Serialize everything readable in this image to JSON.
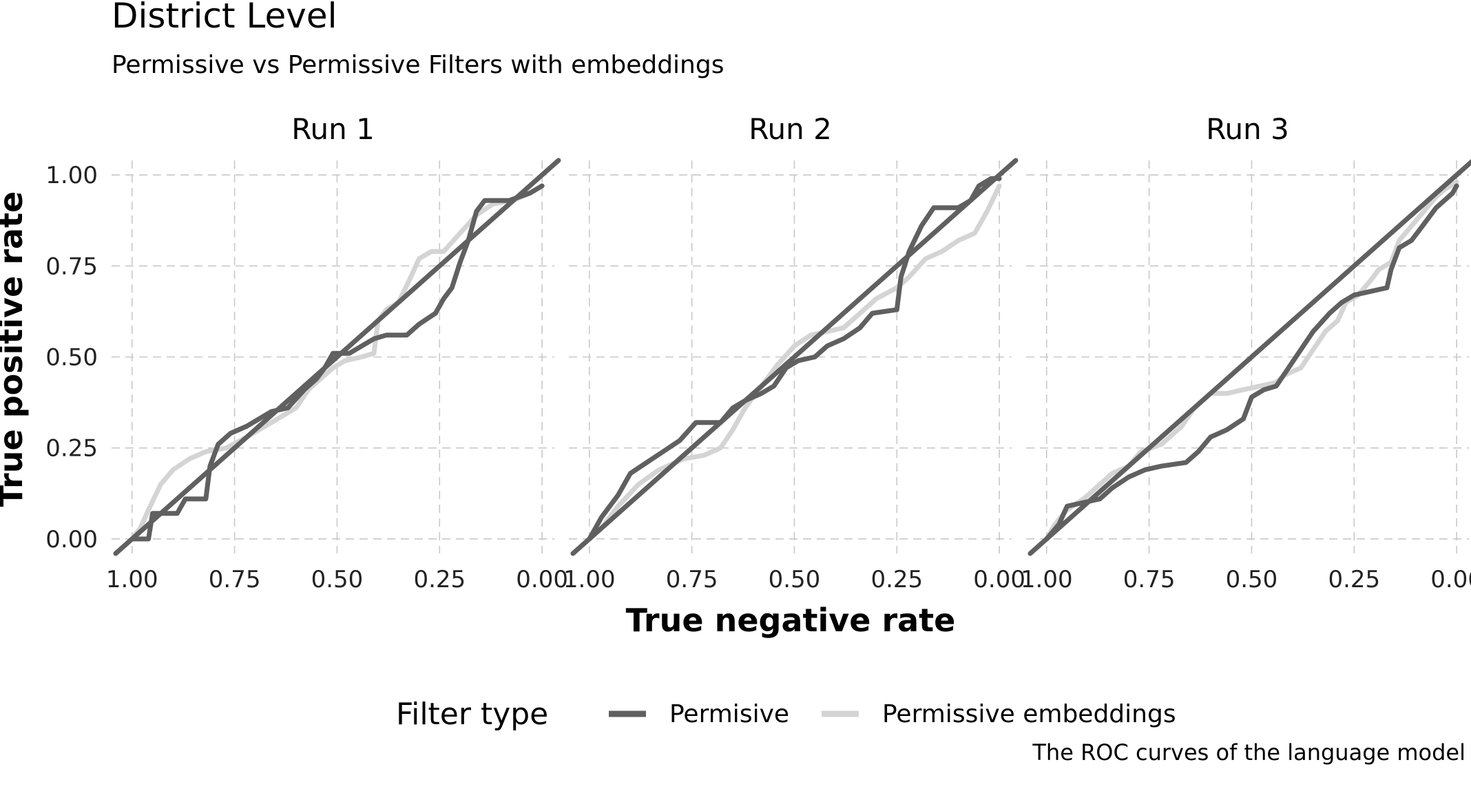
{
  "chart_data": {
    "type": "line",
    "title": "District Level",
    "subtitle": "Permissive vs Permissive Filters with embeddings",
    "caption": "The ROC curves of the language model",
    "xlabel": "True negative rate",
    "ylabel": "True positive rate",
    "x_reversed": true,
    "xlim": [
      1.05,
      -0.03
    ],
    "ylim": [
      -0.04,
      1.04
    ],
    "x_ticks": [
      1.0,
      0.75,
      0.5,
      0.25,
      0.0
    ],
    "x_tick_labels": [
      "1.00",
      "0.75",
      "0.50",
      "0.25",
      "0.00"
    ],
    "y_ticks": [
      0.0,
      0.25,
      0.5,
      0.75,
      1.0
    ],
    "y_tick_labels": [
      "0.00",
      "0.25",
      "0.50",
      "0.75",
      "1.00"
    ],
    "grid": true,
    "legend": {
      "title": "Filter type",
      "position": "bottom",
      "items": [
        {
          "label": "Permisive",
          "color": "#606060"
        },
        {
          "label": "Permissive embeddings",
          "color": "#d4d4d4"
        }
      ]
    },
    "reference_line": {
      "from": [
        1.04,
        -0.04
      ],
      "to": [
        -0.04,
        1.04
      ],
      "color": "#606060"
    },
    "facets": [
      {
        "label": "Run 1",
        "series": [
          {
            "name": "Permissive embeddings",
            "color": "#d4d4d4",
            "points": [
              [
                1.0,
                0.0
              ],
              [
                0.98,
                0.03
              ],
              [
                0.96,
                0.08
              ],
              [
                0.93,
                0.15
              ],
              [
                0.9,
                0.19
              ],
              [
                0.86,
                0.22
              ],
              [
                0.82,
                0.24
              ],
              [
                0.77,
                0.25
              ],
              [
                0.72,
                0.28
              ],
              [
                0.66,
                0.32
              ],
              [
                0.6,
                0.36
              ],
              [
                0.57,
                0.41
              ],
              [
                0.54,
                0.44
              ],
              [
                0.51,
                0.47
              ],
              [
                0.48,
                0.49
              ],
              [
                0.44,
                0.5
              ],
              [
                0.41,
                0.51
              ],
              [
                0.4,
                0.6
              ],
              [
                0.38,
                0.63
              ],
              [
                0.35,
                0.65
              ],
              [
                0.32,
                0.72
              ],
              [
                0.3,
                0.77
              ],
              [
                0.27,
                0.79
              ],
              [
                0.24,
                0.79
              ],
              [
                0.2,
                0.84
              ],
              [
                0.16,
                0.89
              ],
              [
                0.12,
                0.92
              ],
              [
                0.07,
                0.93
              ],
              [
                0.03,
                0.95
              ],
              [
                0.0,
                0.97
              ]
            ]
          },
          {
            "name": "Permisive",
            "color": "#606060",
            "points": [
              [
                1.0,
                0.0
              ],
              [
                0.96,
                0.0
              ],
              [
                0.95,
                0.07
              ],
              [
                0.89,
                0.07
              ],
              [
                0.87,
                0.11
              ],
              [
                0.82,
                0.11
              ],
              [
                0.81,
                0.2
              ],
              [
                0.79,
                0.26
              ],
              [
                0.76,
                0.29
              ],
              [
                0.72,
                0.31
              ],
              [
                0.69,
                0.33
              ],
              [
                0.66,
                0.35
              ],
              [
                0.62,
                0.36
              ],
              [
                0.58,
                0.41
              ],
              [
                0.55,
                0.44
              ],
              [
                0.53,
                0.47
              ],
              [
                0.51,
                0.51
              ],
              [
                0.47,
                0.51
              ],
              [
                0.44,
                0.53
              ],
              [
                0.41,
                0.55
              ],
              [
                0.38,
                0.56
              ],
              [
                0.33,
                0.56
              ],
              [
                0.3,
                0.59
              ],
              [
                0.26,
                0.62
              ],
              [
                0.24,
                0.66
              ],
              [
                0.22,
                0.69
              ],
              [
                0.2,
                0.76
              ],
              [
                0.18,
                0.82
              ],
              [
                0.16,
                0.9
              ],
              [
                0.14,
                0.93
              ],
              [
                0.08,
                0.93
              ],
              [
                0.03,
                0.95
              ],
              [
                0.0,
                0.97
              ]
            ]
          }
        ]
      },
      {
        "label": "Run 2",
        "series": [
          {
            "name": "Permissive embeddings",
            "color": "#d4d4d4",
            "points": [
              [
                1.0,
                0.0
              ],
              [
                0.97,
                0.03
              ],
              [
                0.93,
                0.09
              ],
              [
                0.88,
                0.15
              ],
              [
                0.83,
                0.19
              ],
              [
                0.77,
                0.22
              ],
              [
                0.72,
                0.23
              ],
              [
                0.68,
                0.25
              ],
              [
                0.65,
                0.3
              ],
              [
                0.62,
                0.36
              ],
              [
                0.58,
                0.42
              ],
              [
                0.54,
                0.48
              ],
              [
                0.5,
                0.53
              ],
              [
                0.46,
                0.56
              ],
              [
                0.42,
                0.57
              ],
              [
                0.38,
                0.58
              ],
              [
                0.34,
                0.62
              ],
              [
                0.3,
                0.66
              ],
              [
                0.25,
                0.69
              ],
              [
                0.22,
                0.72
              ],
              [
                0.18,
                0.77
              ],
              [
                0.14,
                0.79
              ],
              [
                0.1,
                0.82
              ],
              [
                0.06,
                0.84
              ],
              [
                0.03,
                0.9
              ],
              [
                0.0,
                0.97
              ]
            ]
          },
          {
            "name": "Permisive",
            "color": "#606060",
            "points": [
              [
                1.0,
                0.0
              ],
              [
                0.97,
                0.06
              ],
              [
                0.93,
                0.12
              ],
              [
                0.9,
                0.18
              ],
              [
                0.86,
                0.21
              ],
              [
                0.82,
                0.24
              ],
              [
                0.78,
                0.27
              ],
              [
                0.74,
                0.32
              ],
              [
                0.68,
                0.32
              ],
              [
                0.65,
                0.36
              ],
              [
                0.62,
                0.38
              ],
              [
                0.58,
                0.4
              ],
              [
                0.55,
                0.42
              ],
              [
                0.52,
                0.47
              ],
              [
                0.49,
                0.49
              ],
              [
                0.45,
                0.5
              ],
              [
                0.42,
                0.53
              ],
              [
                0.38,
                0.55
              ],
              [
                0.34,
                0.58
              ],
              [
                0.31,
                0.62
              ],
              [
                0.25,
                0.63
              ],
              [
                0.24,
                0.72
              ],
              [
                0.22,
                0.79
              ],
              [
                0.19,
                0.86
              ],
              [
                0.16,
                0.91
              ],
              [
                0.1,
                0.91
              ],
              [
                0.07,
                0.93
              ],
              [
                0.05,
                0.97
              ],
              [
                0.02,
                0.99
              ],
              [
                0.0,
                0.99
              ]
            ]
          }
        ]
      },
      {
        "label": "Run 3",
        "series": [
          {
            "name": "Permissive embeddings",
            "color": "#d4d4d4",
            "points": [
              [
                1.0,
                0.0
              ],
              [
                0.98,
                0.04
              ],
              [
                0.95,
                0.08
              ],
              [
                0.91,
                0.11
              ],
              [
                0.87,
                0.15
              ],
              [
                0.84,
                0.18
              ],
              [
                0.8,
                0.2
              ],
              [
                0.77,
                0.24
              ],
              [
                0.72,
                0.26
              ],
              [
                0.67,
                0.31
              ],
              [
                0.64,
                0.36
              ],
              [
                0.6,
                0.4
              ],
              [
                0.56,
                0.4
              ],
              [
                0.52,
                0.41
              ],
              [
                0.48,
                0.42
              ],
              [
                0.44,
                0.43
              ],
              [
                0.42,
                0.45
              ],
              [
                0.38,
                0.47
              ],
              [
                0.35,
                0.52
              ],
              [
                0.32,
                0.57
              ],
              [
                0.29,
                0.6
              ],
              [
                0.27,
                0.65
              ],
              [
                0.24,
                0.67
              ],
              [
                0.21,
                0.71
              ],
              [
                0.19,
                0.74
              ],
              [
                0.16,
                0.76
              ],
              [
                0.14,
                0.82
              ],
              [
                0.11,
                0.86
              ],
              [
                0.08,
                0.9
              ],
              [
                0.05,
                0.94
              ],
              [
                0.03,
                0.96
              ],
              [
                0.0,
                0.98
              ]
            ]
          },
          {
            "name": "Permisive",
            "color": "#606060",
            "points": [
              [
                1.0,
                0.0
              ],
              [
                0.97,
                0.04
              ],
              [
                0.95,
                0.09
              ],
              [
                0.91,
                0.1
              ],
              [
                0.87,
                0.11
              ],
              [
                0.84,
                0.14
              ],
              [
                0.8,
                0.17
              ],
              [
                0.76,
                0.19
              ],
              [
                0.72,
                0.2
              ],
              [
                0.66,
                0.21
              ],
              [
                0.63,
                0.24
              ],
              [
                0.6,
                0.28
              ],
              [
                0.56,
                0.3
              ],
              [
                0.52,
                0.33
              ],
              [
                0.5,
                0.39
              ],
              [
                0.47,
                0.41
              ],
              [
                0.44,
                0.42
              ],
              [
                0.41,
                0.47
              ],
              [
                0.38,
                0.52
              ],
              [
                0.35,
                0.57
              ],
              [
                0.31,
                0.62
              ],
              [
                0.28,
                0.65
              ],
              [
                0.25,
                0.67
              ],
              [
                0.21,
                0.68
              ],
              [
                0.17,
                0.69
              ],
              [
                0.16,
                0.74
              ],
              [
                0.14,
                0.8
              ],
              [
                0.11,
                0.82
              ],
              [
                0.09,
                0.85
              ],
              [
                0.07,
                0.88
              ],
              [
                0.05,
                0.91
              ],
              [
                0.03,
                0.93
              ],
              [
                0.01,
                0.95
              ],
              [
                0.0,
                0.97
              ]
            ]
          }
        ]
      }
    ]
  }
}
